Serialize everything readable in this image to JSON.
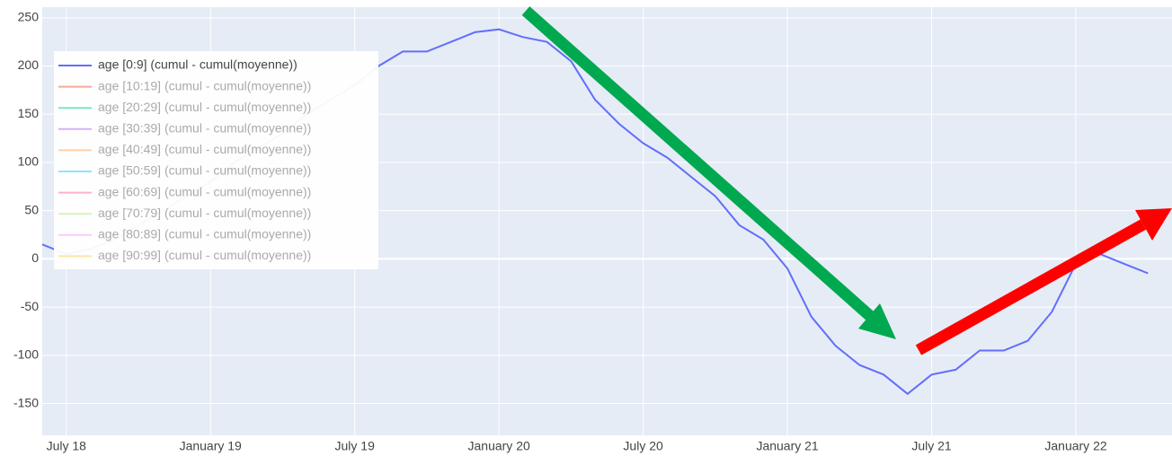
{
  "chart_data": {
    "type": "line",
    "x": [
      "2018-06",
      "2018-07",
      "2018-08",
      "2018-09",
      "2018-10",
      "2018-11",
      "2018-12",
      "2019-01",
      "2019-02",
      "2019-03",
      "2019-04",
      "2019-05",
      "2019-06",
      "2019-07",
      "2019-08",
      "2019-09",
      "2019-10",
      "2019-11",
      "2019-12",
      "2020-01",
      "2020-02",
      "2020-03",
      "2020-04",
      "2020-05",
      "2020-06",
      "2020-07",
      "2020-08",
      "2020-09",
      "2020-10",
      "2020-11",
      "2020-12",
      "2021-01",
      "2021-02",
      "2021-03",
      "2021-04",
      "2021-05",
      "2021-06",
      "2021-07",
      "2021-08",
      "2021-09",
      "2021-10",
      "2021-11",
      "2021-12",
      "2022-01",
      "2022-02",
      "2022-03",
      "2022-04"
    ],
    "series": [
      {
        "name": "age [0:9] (cumul - cumul(moyenne))",
        "color": "#636efa",
        "values": [
          15,
          5,
          10,
          20,
          35,
          50,
          65,
          80,
          100,
          115,
          130,
          150,
          165,
          180,
          200,
          215,
          215,
          225,
          235,
          238,
          230,
          225,
          205,
          165,
          140,
          120,
          105,
          85,
          65,
          35,
          20,
          -10,
          -60,
          -90,
          -110,
          -120,
          -140,
          -120,
          -115,
          -95,
          -95,
          -85,
          -55,
          -5,
          5,
          -5,
          -15
        ]
      },
      {
        "name": "age [10:19] (cumul - cumul(moyenne))",
        "color": "#EF553B",
        "visible": "legendonly"
      },
      {
        "name": "age [20:29] (cumul - cumul(moyenne))",
        "color": "#00cc96",
        "visible": "legendonly"
      },
      {
        "name": "age [30:39] (cumul - cumul(moyenne))",
        "color": "#ab63fa",
        "visible": "legendonly"
      },
      {
        "name": "age [40:49] (cumul - cumul(moyenne))",
        "color": "#FFA15A",
        "visible": "legendonly"
      },
      {
        "name": "age [50:59] (cumul - cumul(moyenne))",
        "color": "#19d3f3",
        "visible": "legendonly"
      },
      {
        "name": "age [60:69] (cumul - cumul(moyenne))",
        "color": "#FF6692",
        "visible": "legendonly"
      },
      {
        "name": "age [70:79] (cumul - cumul(moyenne))",
        "color": "#B6E880",
        "visible": "legendonly"
      },
      {
        "name": "age [80:89] (cumul - cumul(moyenne))",
        "color": "#FF97FF",
        "visible": "legendonly"
      },
      {
        "name": "age [90:99] (cumul - cumul(moyenne))",
        "color": "#FECB52",
        "visible": "legendonly"
      }
    ],
    "xlim": [
      "2018-06",
      "2022-05"
    ],
    "xticks": [
      {
        "value": "2018-07",
        "label": "July 18"
      },
      {
        "value": "2019-01",
        "label": "January 19"
      },
      {
        "value": "2019-07",
        "label": "July 19"
      },
      {
        "value": "2020-01",
        "label": "January 20"
      },
      {
        "value": "2020-07",
        "label": "July 20"
      },
      {
        "value": "2021-01",
        "label": "January 21"
      },
      {
        "value": "2021-07",
        "label": "July 21"
      },
      {
        "value": "2022-01",
        "label": "January 22"
      }
    ],
    "ylim": [
      -183,
      261
    ],
    "yticks": [
      -150,
      -100,
      -50,
      0,
      50,
      100,
      150,
      200,
      250
    ],
    "grid": true,
    "legend": "top-left"
  }
}
